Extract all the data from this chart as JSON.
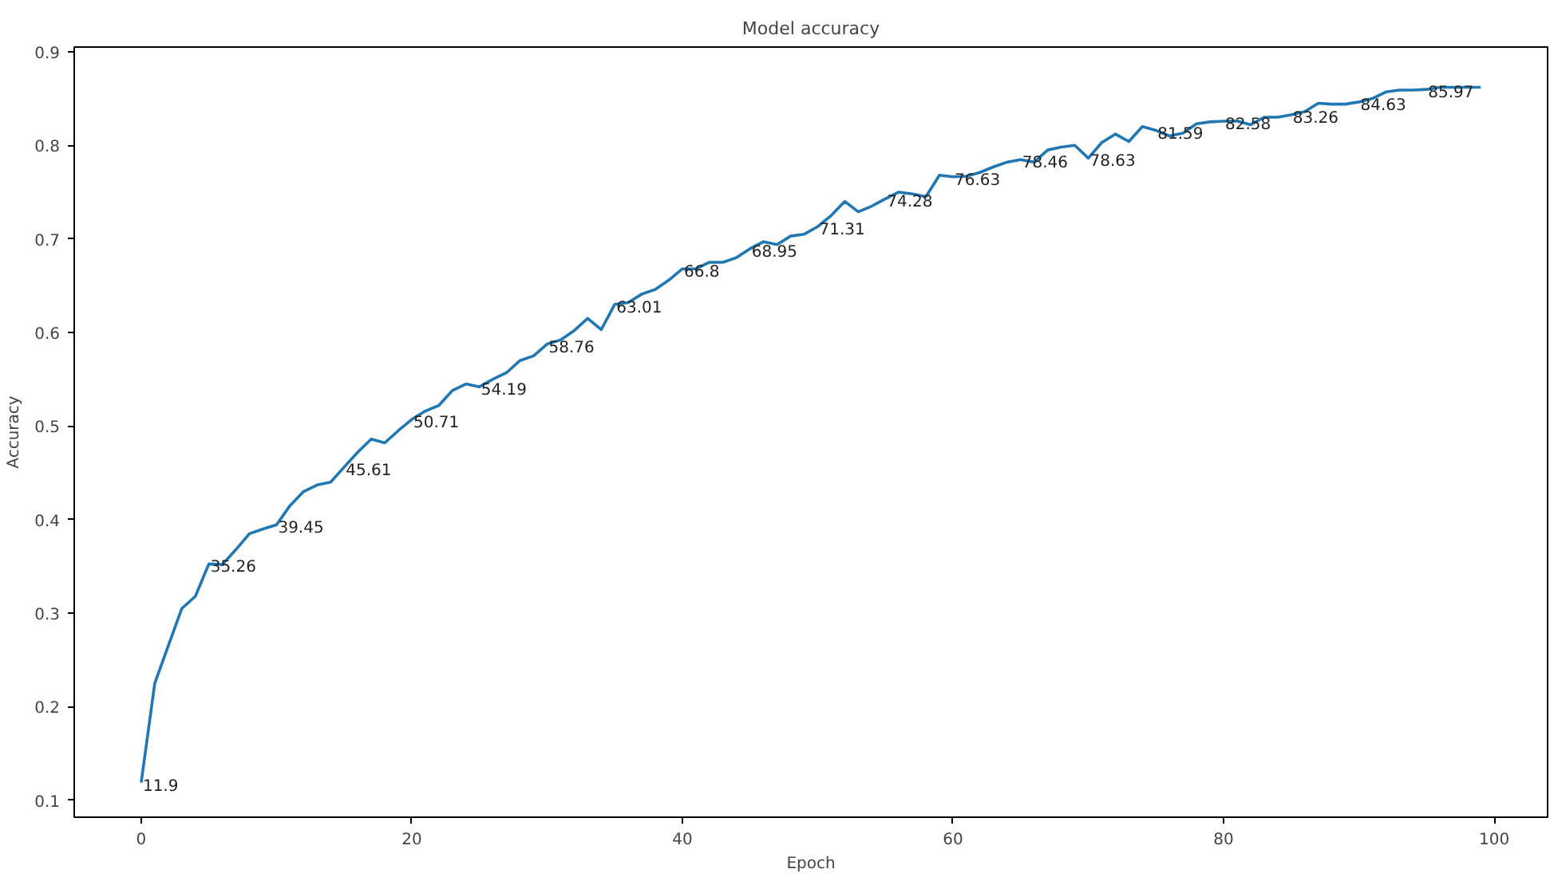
{
  "chart_data": {
    "type": "line",
    "title": "Model accuracy",
    "xlabel": "Epoch",
    "ylabel": "Accuracy",
    "x": [
      0,
      1,
      2,
      3,
      4,
      5,
      6,
      7,
      8,
      9,
      10,
      11,
      12,
      13,
      14,
      15,
      16,
      17,
      18,
      19,
      20,
      21,
      22,
      23,
      24,
      25,
      26,
      27,
      28,
      29,
      30,
      31,
      32,
      33,
      34,
      35,
      36,
      37,
      38,
      39,
      40,
      41,
      42,
      43,
      44,
      45,
      46,
      47,
      48,
      49,
      50,
      51,
      52,
      53,
      54,
      55,
      56,
      57,
      58,
      59,
      60,
      61,
      62,
      63,
      64,
      65,
      66,
      67,
      68,
      69,
      70,
      71,
      72,
      73,
      74,
      75,
      76,
      77,
      78,
      79,
      80,
      81,
      82,
      83,
      84,
      85,
      86,
      87,
      88,
      89,
      90,
      91,
      92,
      93,
      94,
      95,
      96,
      97,
      98,
      99
    ],
    "series": [
      {
        "color": "#1f77b4",
        "values": [
          0.119,
          0.225,
          0.265,
          0.305,
          0.318,
          0.3526,
          0.352,
          0.368,
          0.385,
          0.39,
          0.3945,
          0.415,
          0.43,
          0.437,
          0.44,
          0.4561,
          0.472,
          0.486,
          0.482,
          0.495,
          0.5071,
          0.516,
          0.522,
          0.538,
          0.545,
          0.5419,
          0.55,
          0.557,
          0.57,
          0.575,
          0.5876,
          0.592,
          0.602,
          0.615,
          0.603,
          0.6301,
          0.632,
          0.641,
          0.646,
          0.656,
          0.668,
          0.668,
          0.675,
          0.675,
          0.68,
          0.6895,
          0.697,
          0.694,
          0.703,
          0.705,
          0.7131,
          0.725,
          0.74,
          0.729,
          0.735,
          0.7428,
          0.75,
          0.748,
          0.745,
          0.768,
          0.7663,
          0.767,
          0.771,
          0.777,
          0.782,
          0.7846,
          0.782,
          0.795,
          0.798,
          0.8,
          0.7863,
          0.803,
          0.812,
          0.804,
          0.82,
          0.8159,
          0.81,
          0.813,
          0.823,
          0.825,
          0.8258,
          0.826,
          0.822,
          0.83,
          0.83,
          0.8326,
          0.836,
          0.845,
          0.844,
          0.844,
          0.8463,
          0.85,
          0.857,
          0.859,
          0.859,
          0.8597,
          0.862,
          0.862,
          0.862,
          0.862
        ]
      }
    ],
    "xlim": [
      -4.95,
      103.95
    ],
    "ylim": [
      0.082,
      0.905
    ],
    "xticks": [
      0,
      20,
      40,
      60,
      80,
      100
    ],
    "yticks": [
      0.1,
      0.2,
      0.3,
      0.4,
      0.5,
      0.6,
      0.7,
      0.8,
      0.9
    ],
    "grid": false,
    "marker": "none",
    "line_style": "solid",
    "annotations": [
      {
        "text": "11.9",
        "x": 0,
        "y": 0.119
      },
      {
        "text": "35.26",
        "x": 5,
        "y": 0.3526
      },
      {
        "text": "39.45",
        "x": 10,
        "y": 0.3945
      },
      {
        "text": "45.61",
        "x": 15,
        "y": 0.4561
      },
      {
        "text": "50.71",
        "x": 20,
        "y": 0.5071
      },
      {
        "text": "54.19",
        "x": 25,
        "y": 0.5419
      },
      {
        "text": "58.76",
        "x": 30,
        "y": 0.5876
      },
      {
        "text": "63.01",
        "x": 35,
        "y": 0.6301
      },
      {
        "text": "66.8",
        "x": 40,
        "y": 0.668
      },
      {
        "text": "68.95",
        "x": 45,
        "y": 0.6895
      },
      {
        "text": "71.31",
        "x": 50,
        "y": 0.7131
      },
      {
        "text": "74.28",
        "x": 55,
        "y": 0.7428
      },
      {
        "text": "76.63",
        "x": 60,
        "y": 0.7663
      },
      {
        "text": "78.46",
        "x": 65,
        "y": 0.7846
      },
      {
        "text": "78.63",
        "x": 70,
        "y": 0.7863
      },
      {
        "text": "81.59",
        "x": 75,
        "y": 0.8159
      },
      {
        "text": "82.58",
        "x": 80,
        "y": 0.8258
      },
      {
        "text": "83.26",
        "x": 85,
        "y": 0.8326
      },
      {
        "text": "84.63",
        "x": 90,
        "y": 0.8463
      },
      {
        "text": "85.97",
        "x": 95,
        "y": 0.8597
      }
    ]
  }
}
